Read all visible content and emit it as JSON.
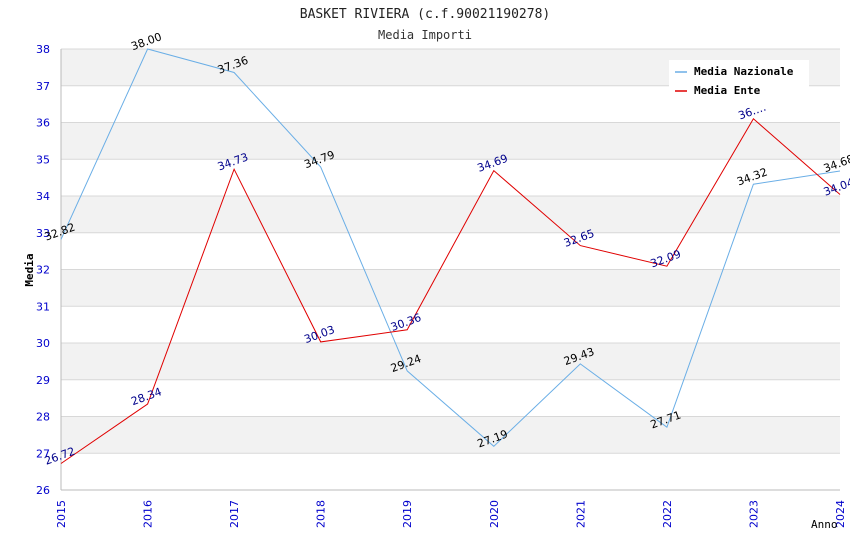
{
  "chart_data": {
    "type": "line",
    "title": "BASKET RIVIERA (c.f.90021190278)",
    "subtitle": "Media Importi",
    "xlabel": "Anno",
    "ylabel": "Media",
    "x": [
      "2015",
      "2016",
      "2017",
      "2018",
      "2019",
      "2020",
      "2021",
      "2022",
      "2023",
      "2024"
    ],
    "ylim": [
      26,
      38
    ],
    "yticks": [
      26,
      27,
      28,
      29,
      30,
      31,
      32,
      33,
      34,
      35,
      36,
      37,
      38
    ],
    "grid": true,
    "legend_position": "top-right",
    "series": [
      {
        "name": "Media Nazionale",
        "color": "#6aaee6",
        "label_color": "#000000",
        "values": [
          32.82,
          38.0,
          37.36,
          34.79,
          29.24,
          27.19,
          29.43,
          27.71,
          34.32,
          34.68
        ],
        "labels": [
          "32.82",
          "38.00",
          "37.36",
          "34.79",
          "29.24",
          "27.19",
          "29.43",
          "27.71",
          "34.32",
          "34.68"
        ]
      },
      {
        "name": "Media Ente",
        "color": "#e00000",
        "label_color": "#00008b",
        "values": [
          26.72,
          28.34,
          34.73,
          30.03,
          30.36,
          34.69,
          32.65,
          32.09,
          36.1,
          34.04
        ],
        "labels": [
          "26.72",
          "28.34",
          "34.73",
          "30.03",
          "30.36",
          "34.69",
          "32.65",
          "32.09",
          "36.…",
          "34.04"
        ]
      }
    ],
    "colors": {
      "tick_text": "#0000cc",
      "title_text": "#222222",
      "band": "#f2f2f2",
      "grid": "#d8d8d8"
    }
  }
}
